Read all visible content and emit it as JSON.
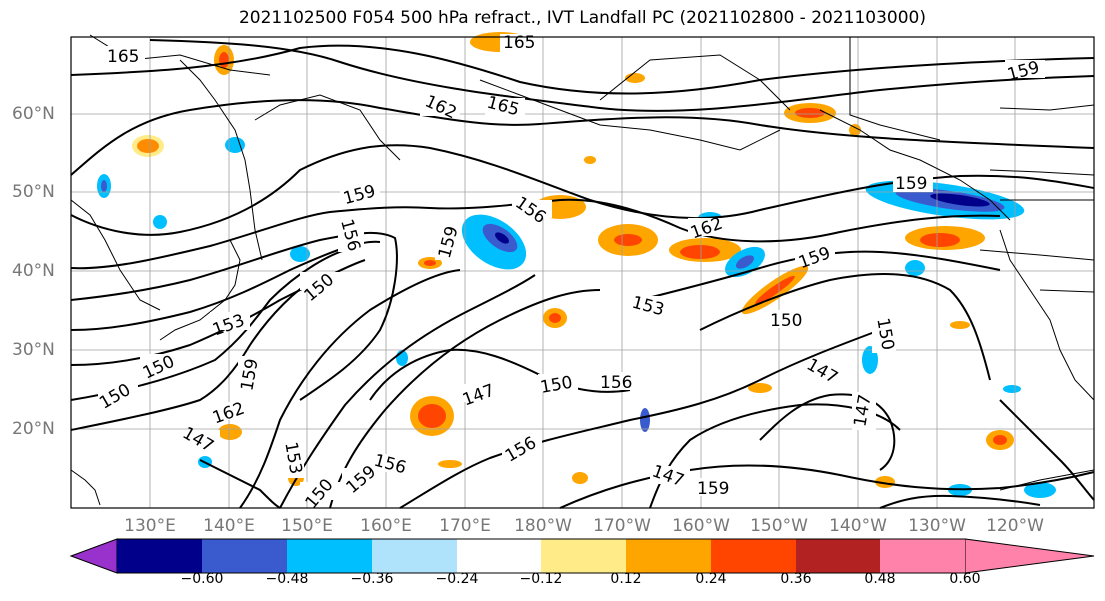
{
  "title": "2021102500 F054 500 hPa refract., IVT Landfall PC (2021102800 - 2021103000)",
  "lat_labels": [
    "60°N",
    "50°N",
    "40°N",
    "30°N",
    "20°N"
  ],
  "lon_labels": [
    "130°E",
    "140°E",
    "150°E",
    "160°E",
    "170°E",
    "180°W",
    "170°W",
    "160°W",
    "150°W",
    "140°W",
    "130°W",
    "120°W"
  ],
  "contour_labels": [
    "165",
    "165",
    "162",
    "165",
    "159",
    "159",
    "156",
    "156",
    "162",
    "159",
    "159",
    "150",
    "153",
    "150",
    "150",
    "153",
    "147",
    "150",
    "156",
    "150",
    "147",
    "147",
    "150",
    "147",
    "159",
    "162",
    "156",
    "156",
    "159",
    "147",
    "159",
    "153",
    "150",
    "159"
  ],
  "colorbar": {
    "tick_labels": [
      "−0.60",
      "−0.48",
      "−0.36",
      "−0.24",
      "−0.12",
      "0.12",
      "0.24",
      "0.36",
      "0.48",
      "0.60"
    ],
    "colors": [
      "#9932cc",
      "#00008b",
      "#3a5bcd",
      "#00bfff",
      "#afe2fb",
      "#ffffff",
      "#ffeb87",
      "#ffa500",
      "#ff4500",
      "#b22222",
      "#ff82ab"
    ]
  }
}
